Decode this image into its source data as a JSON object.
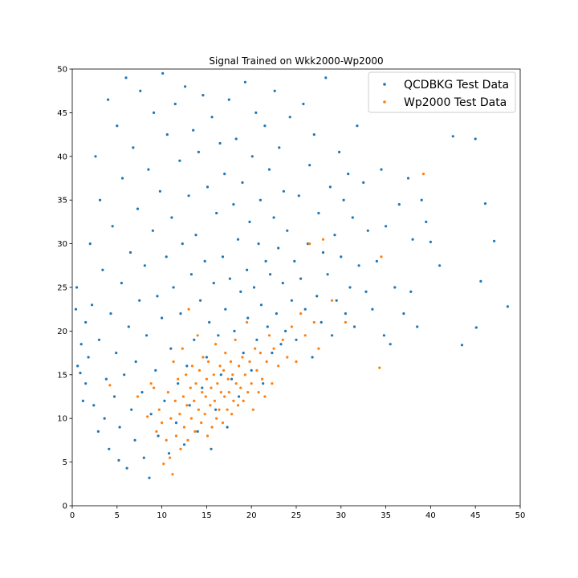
{
  "chart_data": {
    "type": "scatter",
    "title": "Signal Trained on Wkk2000-Wp2000",
    "xlabel": "",
    "ylabel": "",
    "xlim": [
      0,
      50
    ],
    "ylim": [
      0,
      50
    ],
    "x_ticks": [
      "0",
      "5",
      "10",
      "15",
      "20",
      "25",
      "30",
      "35",
      "40",
      "45",
      "50"
    ],
    "y_ticks": [
      "0",
      "5",
      "10",
      "15",
      "20",
      "25",
      "30",
      "35",
      "40",
      "45",
      "50"
    ],
    "grid": false,
    "legend_position": "top-right",
    "series": [
      {
        "name": "QCDBKG Test Data",
        "color": "#1f77b4",
        "points": [
          [
            0.5,
            25.0
          ],
          [
            0.4,
            22.5
          ],
          [
            0.6,
            16.0
          ],
          [
            0.9,
            15.2
          ],
          [
            1.0,
            18.5
          ],
          [
            1.2,
            12.0
          ],
          [
            1.5,
            14.0
          ],
          [
            1.5,
            21.0
          ],
          [
            1.8,
            17.0
          ],
          [
            2.0,
            30.0
          ],
          [
            2.2,
            23.0
          ],
          [
            2.4,
            11.5
          ],
          [
            2.6,
            40.0
          ],
          [
            2.9,
            8.5
          ],
          [
            3.0,
            19.0
          ],
          [
            3.1,
            35.0
          ],
          [
            3.4,
            27.0
          ],
          [
            3.6,
            10.0
          ],
          [
            3.8,
            14.5
          ],
          [
            4.0,
            46.5
          ],
          [
            4.1,
            6.5
          ],
          [
            4.3,
            22.0
          ],
          [
            4.5,
            32.0
          ],
          [
            4.7,
            12.5
          ],
          [
            4.9,
            17.5
          ],
          [
            5.0,
            43.5
          ],
          [
            5.2,
            5.2
          ],
          [
            5.3,
            9.0
          ],
          [
            5.5,
            25.5
          ],
          [
            5.6,
            37.5
          ],
          [
            5.8,
            15.0
          ],
          [
            6.0,
            49.0
          ],
          [
            6.1,
            4.3
          ],
          [
            6.3,
            20.5
          ],
          [
            6.5,
            29.0
          ],
          [
            6.6,
            11.0
          ],
          [
            6.8,
            41.0
          ],
          [
            7.0,
            7.5
          ],
          [
            7.1,
            16.5
          ],
          [
            7.3,
            34.0
          ],
          [
            7.5,
            23.5
          ],
          [
            7.6,
            47.5
          ],
          [
            7.8,
            13.0
          ],
          [
            8.0,
            5.5
          ],
          [
            8.1,
            27.5
          ],
          [
            8.3,
            19.5
          ],
          [
            8.5,
            38.5
          ],
          [
            8.6,
            3.2
          ],
          [
            8.8,
            10.5
          ],
          [
            9.0,
            31.5
          ],
          [
            9.1,
            45.0
          ],
          [
            9.3,
            15.5
          ],
          [
            9.5,
            24.0
          ],
          [
            9.6,
            8.0
          ],
          [
            9.8,
            36.0
          ],
          [
            10.0,
            21.5
          ],
          [
            10.1,
            49.5
          ],
          [
            10.3,
            12.0
          ],
          [
            10.5,
            28.5
          ],
          [
            10.6,
            42.5
          ],
          [
            10.8,
            6.0
          ],
          [
            11.0,
            18.0
          ],
          [
            11.1,
            33.0
          ],
          [
            11.3,
            25.0
          ],
          [
            11.5,
            46.0
          ],
          [
            11.6,
            9.5
          ],
          [
            11.8,
            14.0
          ],
          [
            12.0,
            39.5
          ],
          [
            12.1,
            22.0
          ],
          [
            12.3,
            30.0
          ],
          [
            12.5,
            7.0
          ],
          [
            12.6,
            48.0
          ],
          [
            12.8,
            16.0
          ],
          [
            13.0,
            35.5
          ],
          [
            13.1,
            11.5
          ],
          [
            13.3,
            26.5
          ],
          [
            13.5,
            43.0
          ],
          [
            13.6,
            19.0
          ],
          [
            13.8,
            31.0
          ],
          [
            14.0,
            8.5
          ],
          [
            14.1,
            40.5
          ],
          [
            14.3,
            23.5
          ],
          [
            14.5,
            13.5
          ],
          [
            14.6,
            47.0
          ],
          [
            14.8,
            28.0
          ],
          [
            15.0,
            17.0
          ],
          [
            15.1,
            36.5
          ],
          [
            15.3,
            21.0
          ],
          [
            15.5,
            6.5
          ],
          [
            15.6,
            44.5
          ],
          [
            15.8,
            25.5
          ],
          [
            16.0,
            11.0
          ],
          [
            16.1,
            33.5
          ],
          [
            16.3,
            19.5
          ],
          [
            16.5,
            41.5
          ],
          [
            16.6,
            15.0
          ],
          [
            16.8,
            28.5
          ],
          [
            17.0,
            38.0
          ],
          [
            17.1,
            22.5
          ],
          [
            17.3,
            9.0
          ],
          [
            17.5,
            46.5
          ],
          [
            17.6,
            26.0
          ],
          [
            17.8,
            14.5
          ],
          [
            18.0,
            34.5
          ],
          [
            18.1,
            20.0
          ],
          [
            18.3,
            42.0
          ],
          [
            18.5,
            30.5
          ],
          [
            18.6,
            12.5
          ],
          [
            18.8,
            24.5
          ],
          [
            19.0,
            37.0
          ],
          [
            19.1,
            17.5
          ],
          [
            19.3,
            48.5
          ],
          [
            19.5,
            27.0
          ],
          [
            19.6,
            21.5
          ],
          [
            19.8,
            32.5
          ],
          [
            20.0,
            15.5
          ],
          [
            20.1,
            40.0
          ],
          [
            20.3,
            25.0
          ],
          [
            20.5,
            45.0
          ],
          [
            20.6,
            19.0
          ],
          [
            20.8,
            30.0
          ],
          [
            21.0,
            35.0
          ],
          [
            21.1,
            23.0
          ],
          [
            21.3,
            14.0
          ],
          [
            21.5,
            43.5
          ],
          [
            21.6,
            28.0
          ],
          [
            21.8,
            20.5
          ],
          [
            22.0,
            38.5
          ],
          [
            22.1,
            26.5
          ],
          [
            22.3,
            17.5
          ],
          [
            22.5,
            33.0
          ],
          [
            22.6,
            47.5
          ],
          [
            22.8,
            22.0
          ],
          [
            23.0,
            29.5
          ],
          [
            23.1,
            41.0
          ],
          [
            23.3,
            18.5
          ],
          [
            23.5,
            25.5
          ],
          [
            23.6,
            36.0
          ],
          [
            23.8,
            20.0
          ],
          [
            24.0,
            31.5
          ],
          [
            24.3,
            44.5
          ],
          [
            24.5,
            23.5
          ],
          [
            24.8,
            28.0
          ],
          [
            25.0,
            19.0
          ],
          [
            25.3,
            35.5
          ],
          [
            25.5,
            26.0
          ],
          [
            25.8,
            46.0
          ],
          [
            26.0,
            22.5
          ],
          [
            26.3,
            30.0
          ],
          [
            26.5,
            39.0
          ],
          [
            26.8,
            17.0
          ],
          [
            27.0,
            42.5
          ],
          [
            27.3,
            24.0
          ],
          [
            27.5,
            33.5
          ],
          [
            27.8,
            21.0
          ],
          [
            28.0,
            29.0
          ],
          [
            28.3,
            49.0
          ],
          [
            28.5,
            26.5
          ],
          [
            28.8,
            36.5
          ],
          [
            29.0,
            19.5
          ],
          [
            29.3,
            31.0
          ],
          [
            29.5,
            23.5
          ],
          [
            29.8,
            40.5
          ],
          [
            30.0,
            28.5
          ],
          [
            30.3,
            35.0
          ],
          [
            30.5,
            22.0
          ],
          [
            30.8,
            38.0
          ],
          [
            31.0,
            25.0
          ],
          [
            31.3,
            33.0
          ],
          [
            31.5,
            20.5
          ],
          [
            31.8,
            43.5
          ],
          [
            32.0,
            27.5
          ],
          [
            32.5,
            37.0
          ],
          [
            32.8,
            24.5
          ],
          [
            33.0,
            31.5
          ],
          [
            33.5,
            22.5
          ],
          [
            34.0,
            28.0
          ],
          [
            34.5,
            38.5
          ],
          [
            34.8,
            19.5
          ],
          [
            35.0,
            32.0
          ],
          [
            35.5,
            18.5
          ],
          [
            36.0,
            25.0
          ],
          [
            36.5,
            34.5
          ],
          [
            37.0,
            22.0
          ],
          [
            37.5,
            37.5
          ],
          [
            37.8,
            24.5
          ],
          [
            38.0,
            30.5
          ],
          [
            38.5,
            20.5
          ],
          [
            39.0,
            35.0
          ],
          [
            39.5,
            32.5
          ],
          [
            40.0,
            30.2
          ],
          [
            41.0,
            27.5
          ],
          [
            42.5,
            42.3
          ],
          [
            43.5,
            18.4
          ],
          [
            45.0,
            42.0
          ],
          [
            45.1,
            20.4
          ],
          [
            45.6,
            25.7
          ],
          [
            46.1,
            34.6
          ],
          [
            47.1,
            30.3
          ],
          [
            48.6,
            22.8
          ]
        ]
      },
      {
        "name": "Wp2000 Test Data",
        "color": "#ff7f0e",
        "points": [
          [
            4.2,
            13.8
          ],
          [
            7.3,
            12.5
          ],
          [
            8.4,
            10.2
          ],
          [
            8.8,
            14.0
          ],
          [
            9.1,
            13.5
          ],
          [
            9.4,
            8.5
          ],
          [
            9.7,
            11.0
          ],
          [
            10.0,
            9.5
          ],
          [
            10.2,
            4.8
          ],
          [
            10.5,
            7.5
          ],
          [
            10.7,
            13.0
          ],
          [
            10.9,
            5.5
          ],
          [
            11.0,
            10.0
          ],
          [
            11.2,
            3.6
          ],
          [
            11.3,
            16.5
          ],
          [
            11.5,
            12.0
          ],
          [
            11.6,
            8.0
          ],
          [
            11.8,
            14.5
          ],
          [
            12.0,
            10.5
          ],
          [
            12.1,
            6.5
          ],
          [
            12.3,
            18.0
          ],
          [
            12.4,
            12.5
          ],
          [
            12.5,
            9.0
          ],
          [
            12.7,
            15.0
          ],
          [
            12.8,
            11.5
          ],
          [
            12.9,
            7.5
          ],
          [
            13.0,
            22.5
          ],
          [
            13.2,
            13.5
          ],
          [
            13.3,
            10.0
          ],
          [
            13.4,
            16.0
          ],
          [
            13.6,
            12.0
          ],
          [
            13.7,
            8.5
          ],
          [
            13.8,
            14.0
          ],
          [
            14.0,
            19.5
          ],
          [
            14.1,
            11.0
          ],
          [
            14.2,
            15.5
          ],
          [
            14.4,
            9.5
          ],
          [
            14.5,
            13.0
          ],
          [
            14.6,
            17.0
          ],
          [
            14.8,
            10.5
          ],
          [
            14.9,
            12.5
          ],
          [
            15.0,
            14.5
          ],
          [
            15.1,
            8.0
          ],
          [
            15.2,
            16.5
          ],
          [
            15.4,
            11.5
          ],
          [
            15.5,
            13.5
          ],
          [
            15.6,
            9.0
          ],
          [
            15.8,
            15.0
          ],
          [
            15.9,
            12.0
          ],
          [
            16.0,
            18.5
          ],
          [
            16.1,
            10.0
          ],
          [
            16.2,
            14.0
          ],
          [
            16.4,
            11.0
          ],
          [
            16.5,
            16.0
          ],
          [
            16.6,
            13.0
          ],
          [
            16.8,
            9.5
          ],
          [
            16.9,
            15.5
          ],
          [
            17.0,
            12.5
          ],
          [
            17.1,
            17.5
          ],
          [
            17.3,
            11.0
          ],
          [
            17.4,
            14.5
          ],
          [
            17.5,
            13.0
          ],
          [
            17.7,
            16.5
          ],
          [
            17.8,
            10.5
          ],
          [
            17.9,
            15.0
          ],
          [
            18.0,
            12.0
          ],
          [
            18.2,
            19.0
          ],
          [
            18.3,
            14.0
          ],
          [
            18.5,
            11.5
          ],
          [
            18.6,
            16.0
          ],
          [
            18.8,
            13.5
          ],
          [
            19.0,
            17.0
          ],
          [
            19.1,
            12.0
          ],
          [
            19.3,
            15.0
          ],
          [
            19.5,
            21.0
          ],
          [
            19.6,
            13.0
          ],
          [
            19.8,
            16.5
          ],
          [
            20.0,
            14.0
          ],
          [
            20.2,
            11.0
          ],
          [
            20.4,
            18.0
          ],
          [
            20.6,
            15.5
          ],
          [
            20.8,
            13.0
          ],
          [
            21.0,
            17.5
          ],
          [
            21.2,
            14.5
          ],
          [
            21.5,
            12.5
          ],
          [
            21.7,
            16.5
          ],
          [
            22.0,
            19.5
          ],
          [
            22.3,
            14.0
          ],
          [
            22.5,
            18.0
          ],
          [
            23.0,
            16.0
          ],
          [
            23.5,
            19.0
          ],
          [
            24.0,
            17.0
          ],
          [
            24.5,
            20.5
          ],
          [
            25.0,
            16.5
          ],
          [
            25.5,
            22.0
          ],
          [
            26.0,
            19.5
          ],
          [
            26.5,
            30.0
          ],
          [
            27.0,
            21.0
          ],
          [
            27.5,
            18.0
          ],
          [
            28.0,
            30.5
          ],
          [
            29.0,
            23.5
          ],
          [
            30.5,
            21.0
          ],
          [
            34.3,
            15.8
          ],
          [
            34.5,
            28.5
          ],
          [
            39.2,
            38.0
          ]
        ]
      }
    ]
  }
}
